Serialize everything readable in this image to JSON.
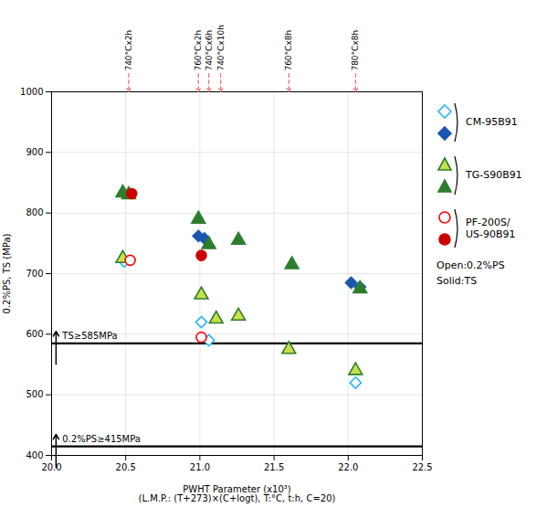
{
  "chart_data": {
    "type": "scatter",
    "xlabel": "PWHT Parameter (x10³)\n(L.M.P.: (T+273)×(C+logt), T:°C, t:h, C=20)",
    "ylabel": "0.2%PS, TS (MPa)",
    "xlim": [
      20.0,
      22.5
    ],
    "ylim": [
      400,
      1000
    ],
    "xticks": [
      {
        "value": 20.0,
        "label": "20.0"
      },
      20.5,
      {
        "value": 21.0,
        "label": "21.0"
      },
      21.5,
      {
        "value": 22.0,
        "label": "22.0"
      },
      22.5
    ],
    "yticks": [
      400,
      500,
      600,
      700,
      800,
      900,
      1000
    ],
    "grid": true,
    "hlines": [
      {
        "y": 585,
        "label": "TS≥585MPa"
      },
      {
        "y": 415,
        "label": "0.2%PS≥415MPa"
      }
    ],
    "annotation_color": "#e87878",
    "annotations": [
      {
        "x": 20.52,
        "label": "740°Cx2h"
      },
      {
        "x": 20.99,
        "label": "760°Cx2h"
      },
      {
        "x": 21.06,
        "label": "740°Cx6h"
      },
      {
        "x": 21.14,
        "label": "740°Cx10h"
      },
      {
        "x": 21.6,
        "label": "760°Cx8h"
      },
      {
        "x": 22.05,
        "label": "780°Cx8h"
      }
    ],
    "notes": [
      "Open:0.2%PS",
      "Solid:TS"
    ],
    "series": [
      {
        "name": "CM-95B91",
        "marker": "diamond",
        "color": "#29b6f6",
        "fill": "#ffffff",
        "x": [
          20.49,
          21.01,
          21.06,
          22.05
        ],
        "values": [
          720,
          620,
          590,
          520
        ]
      },
      {
        "name": "CM-95B91",
        "marker": "diamond",
        "color": "#1a56b0",
        "fill": "#1a56b0",
        "x": [
          20.99,
          21.03,
          22.02,
          22.08
        ],
        "values": [
          762,
          758,
          685,
          678
        ]
      },
      {
        "name": "TG-S90B91",
        "marker": "triangle",
        "color": "#2e7d2e",
        "fill": "#c8e04a",
        "x": [
          20.48,
          21.01,
          21.11,
          21.26,
          21.6,
          22.05
        ],
        "values": [
          725,
          665,
          625,
          630,
          575,
          540
        ]
      },
      {
        "name": "TG-S90B91",
        "marker": "triangle",
        "color": "#2e7d2e",
        "fill": "#2e7d2e",
        "x": [
          20.48,
          20.52,
          20.99,
          21.06,
          21.26,
          21.62,
          22.08
        ],
        "values": [
          833,
          830,
          790,
          748,
          755,
          715,
          675
        ]
      },
      {
        "name": "PF-200S/\nUS-90B91",
        "marker": "circle",
        "color": "#ff0000",
        "fill": "#ffffff",
        "x": [
          20.53,
          21.01
        ],
        "values": [
          722,
          595
        ]
      },
      {
        "name": "PF-200S/\nUS-90B91",
        "marker": "circle",
        "color": "#cc0000",
        "fill": "#cc0000",
        "x": [
          20.54,
          21.01
        ],
        "values": [
          832,
          730
        ]
      }
    ]
  }
}
